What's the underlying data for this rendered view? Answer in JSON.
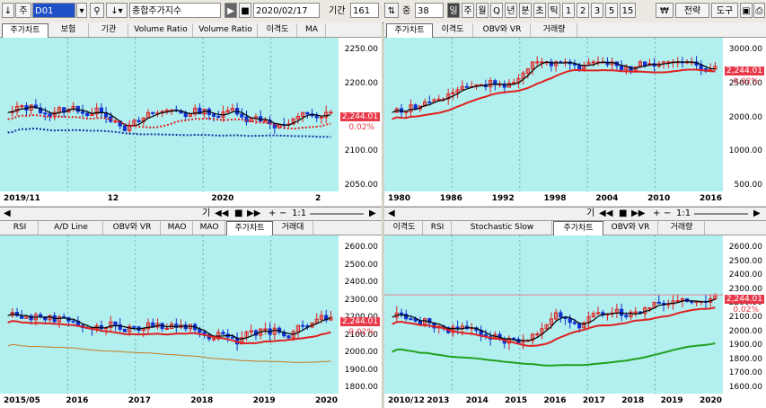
{
  "toolbar": {
    "arrow_label": "↓",
    "market": "주",
    "code": "D01",
    "name": "종합주가지수",
    "date": "2020/02/17",
    "period_label": "기간",
    "period_value": "161",
    "count_label": "중",
    "count_value": "38",
    "intervals": [
      "일",
      "주",
      "월",
      "Q",
      "년",
      "분",
      "초",
      "틱",
      "1",
      "2",
      "3",
      "5",
      "15"
    ],
    "won": "₩",
    "strategy": "전략",
    "tools": "도구"
  },
  "panes": [
    {
      "id": "top-left",
      "tabs": [
        "주가차트",
        "보험",
        "기관",
        "Volume Ratio",
        "Volume Ratio",
        "이격도",
        "MA"
      ],
      "active_tab": 0,
      "price_label": "2,244.01",
      "pct_label": "0.02%",
      "y_ticks": [
        "2250.00",
        "2200.00",
        "2150.00",
        "2100.00",
        "2050.00"
      ],
      "x_ticks": [
        "2019/11",
        "12",
        "2020",
        "2"
      ]
    },
    {
      "id": "top-right",
      "tabs": [
        "주가차트",
        "이격도",
        "OBV와 VR",
        "거래량"
      ],
      "active_tab": 0,
      "price_label": "2,244.01",
      "pct_label": "0.02%",
      "y_ticks": [
        "3000.00",
        "2500.00",
        "2000.00",
        "1000.00",
        "500.00"
      ],
      "x_ticks": [
        "1980",
        "1986",
        "1992",
        "1998",
        "2004",
        "2010",
        "2016"
      ]
    },
    {
      "id": "bottom-left",
      "tabs": [
        "RSI",
        "A/D Line",
        "OBV와 VR",
        "MAO",
        "MAO",
        "주가차트",
        "거래대"
      ],
      "active_tab": 5,
      "price_label": "2,244.01",
      "pct_label": "0.02%",
      "y_ticks": [
        "2600.00",
        "2500.00",
        "2400.00",
        "2300.00",
        "2200.00",
        "2100.00",
        "2000.00",
        "1900.00",
        "1800.00"
      ],
      "x_ticks": [
        "2015/05",
        "2016",
        "2017",
        "2018",
        "2019",
        "2020"
      ]
    },
    {
      "id": "bottom-right",
      "tabs": [
        "이격도",
        "RSI",
        "Stochastic Slow",
        "주가차트",
        "OBV와 VR",
        "거래량"
      ],
      "active_tab": 3,
      "price_label": "2,244.01",
      "pct_label": "0.02%",
      "y_ticks": [
        "2600.00",
        "2500.00",
        "2400.00",
        "2300.00",
        "2200.00",
        "2100.00",
        "2000.00",
        "1900.00",
        "1800.00",
        "1700.00",
        "1600.00"
      ],
      "x_ticks": [
        "2010/12",
        "2013",
        "2014",
        "2015",
        "2016",
        "2017",
        "2018",
        "2019",
        "2020"
      ]
    }
  ],
  "chart_controls": {
    "ratio": "1:1",
    "glyph": "기"
  },
  "colors": {
    "bg": "#b2f0f0",
    "up": "#e02020",
    "down": "#1030d0",
    "ma1": "#000000",
    "ma2": "#e02020",
    "ma3": "#20a020",
    "ma4": "#c87a20"
  }
}
